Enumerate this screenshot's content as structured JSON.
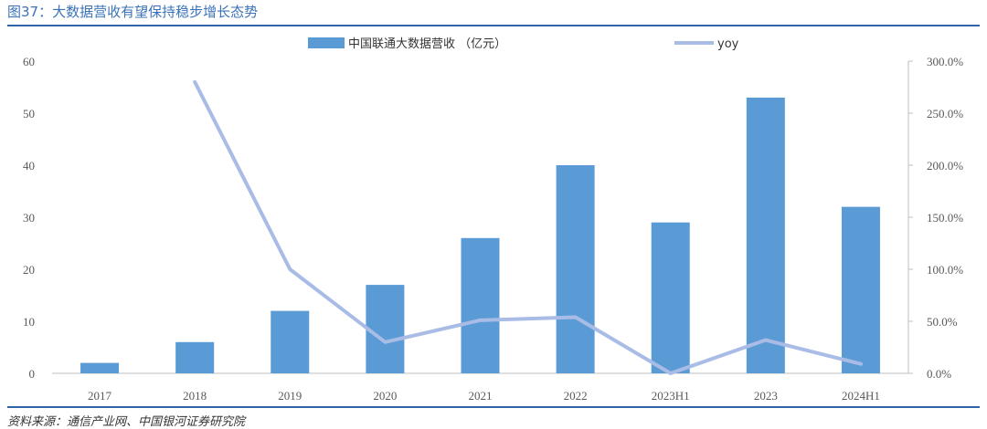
{
  "header": {
    "title": "图37：大数据营收有望保持稳步增长态势"
  },
  "footer": {
    "source": "资料来源：通信产业网、中国银河证券研究院"
  },
  "colors": {
    "bar": "#5b9bd5",
    "line": "#a9bce6",
    "title": "#3a73b8",
    "rule": "#2e63a8",
    "axis": "#bfbfbf"
  },
  "chart_data": {
    "type": "bar",
    "categories": [
      "2017",
      "2018",
      "2019",
      "2020",
      "2021",
      "2022",
      "2023H1",
      "2023",
      "2024H1"
    ],
    "series": [
      {
        "name": "中国联通大数据营收 （亿元）",
        "type": "bar",
        "axis": "left",
        "values": [
          2,
          6,
          12,
          17,
          26,
          40,
          29,
          53,
          32
        ]
      },
      {
        "name": "yoy",
        "type": "line",
        "axis": "right",
        "values": [
          null,
          2.8,
          1.0,
          0.3,
          0.51,
          0.54,
          0.0,
          0.32,
          0.09
        ]
      }
    ],
    "ylim_left": [
      0,
      60
    ],
    "yticks_left": [
      "0",
      "10",
      "20",
      "30",
      "40",
      "50",
      "60"
    ],
    "ylim_right": [
      0,
      3
    ],
    "yticks_right": [
      "0.0%",
      "50.0%",
      "100.0%",
      "150.0%",
      "200.0%",
      "250.0%",
      "300.0%"
    ],
    "legend_position": "top-center",
    "grid": false
  }
}
